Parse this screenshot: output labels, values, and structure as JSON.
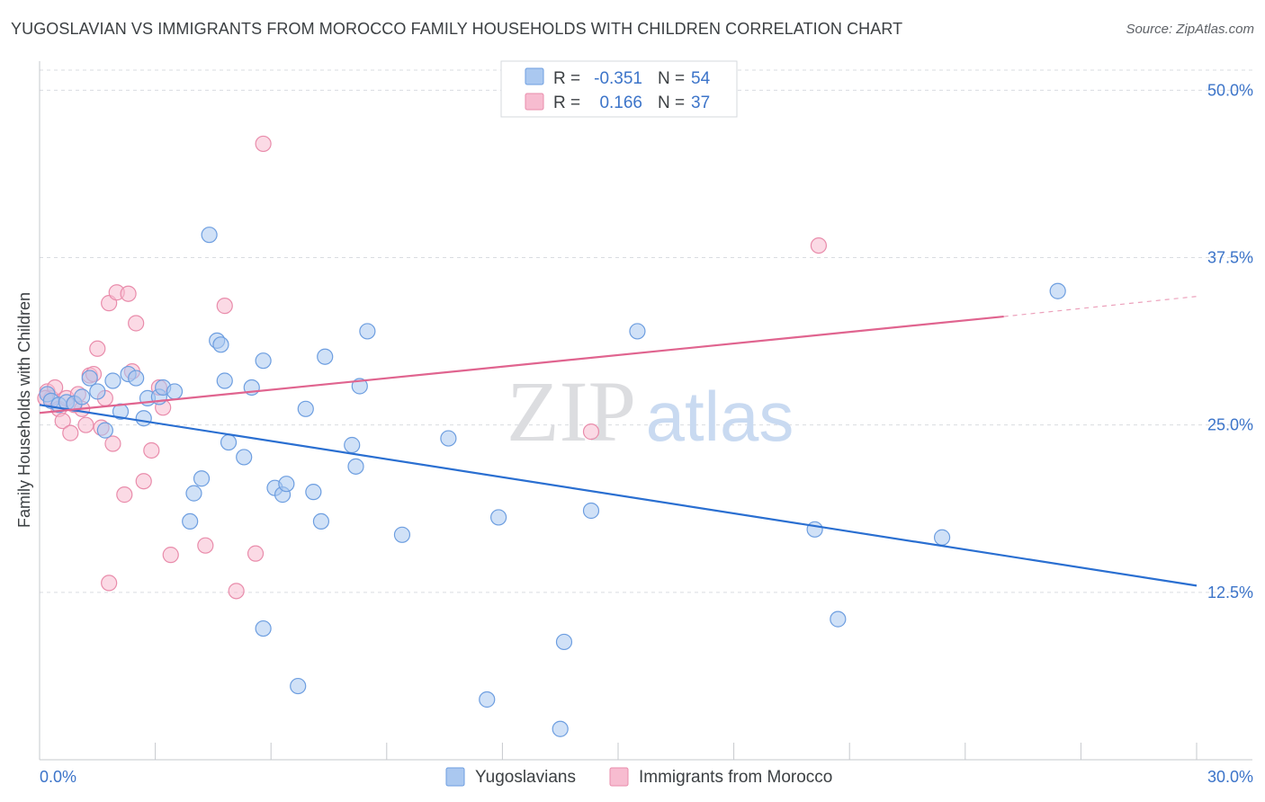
{
  "title": "YUGOSLAVIAN VS IMMIGRANTS FROM MOROCCO FAMILY HOUSEHOLDS WITH CHILDREN CORRELATION CHART",
  "source": "Source: ZipAtlas.com",
  "watermark": {
    "zip": "ZIP",
    "atlas": "atlas"
  },
  "colors": {
    "blue_fill": "#aac8f0",
    "blue_stroke": "#6d9ee0",
    "blue_line": "#2a6fd1",
    "pink_fill": "#f7bcd0",
    "pink_stroke": "#e98cab",
    "pink_line": "#e0648f",
    "axis_text": "#3c74c9",
    "grid": "#d9dce1"
  },
  "legend": {
    "rows": [
      {
        "r_label": "R =",
        "r_value": "-0.351",
        "n_label": "N =",
        "n_value": "54"
      },
      {
        "r_label": "R =",
        "r_value": "0.166",
        "n_label": "N =",
        "n_value": "37"
      }
    ]
  },
  "chart_data": {
    "type": "scatter",
    "title": "YUGOSLAVIAN VS IMMIGRANTS FROM MOROCCO FAMILY HOUSEHOLDS WITH CHILDREN CORRELATION CHART",
    "ylabel": "Family Households with Children",
    "xlabel": "",
    "xlim": [
      0,
      30
    ],
    "ylim": [
      0,
      51.5
    ],
    "x_ticks": [
      "0.0%",
      "30.0%"
    ],
    "y_ticks": [
      {
        "value": 12.5,
        "label": "12.5%"
      },
      {
        "value": 25.0,
        "label": "25.0%"
      },
      {
        "value": 37.5,
        "label": "37.5%"
      },
      {
        "value": 50.0,
        "label": "50.0%"
      }
    ],
    "grid": true,
    "legend_position": "top-center",
    "series": [
      {
        "name": "Yugoslavians",
        "trend": {
          "x": [
            0,
            30
          ],
          "y": [
            26.5,
            13.0
          ]
        },
        "points": [
          [
            0.2,
            27.3
          ],
          [
            0.3,
            26.8
          ],
          [
            0.5,
            26.5
          ],
          [
            0.7,
            26.7
          ],
          [
            0.9,
            26.6
          ],
          [
            1.1,
            27.1
          ],
          [
            1.3,
            28.5
          ],
          [
            1.5,
            27.5
          ],
          [
            1.7,
            24.6
          ],
          [
            1.9,
            28.3
          ],
          [
            2.1,
            26.0
          ],
          [
            2.3,
            28.8
          ],
          [
            2.5,
            28.5
          ],
          [
            2.7,
            25.5
          ],
          [
            2.8,
            27.0
          ],
          [
            3.1,
            27.1
          ],
          [
            3.2,
            27.8
          ],
          [
            3.5,
            27.5
          ],
          [
            3.9,
            17.8
          ],
          [
            4.0,
            19.9
          ],
          [
            4.2,
            21.0
          ],
          [
            4.4,
            39.2
          ],
          [
            4.6,
            31.3
          ],
          [
            4.7,
            31.0
          ],
          [
            4.8,
            28.3
          ],
          [
            4.9,
            23.7
          ],
          [
            5.3,
            22.6
          ],
          [
            5.5,
            27.8
          ],
          [
            5.8,
            29.8
          ],
          [
            5.8,
            9.8
          ],
          [
            6.1,
            20.3
          ],
          [
            6.3,
            19.8
          ],
          [
            6.4,
            20.6
          ],
          [
            6.7,
            5.5
          ],
          [
            6.9,
            26.2
          ],
          [
            7.1,
            20.0
          ],
          [
            7.3,
            17.8
          ],
          [
            7.4,
            30.1
          ],
          [
            8.1,
            23.5
          ],
          [
            8.2,
            21.9
          ],
          [
            8.3,
            27.9
          ],
          [
            8.5,
            32.0
          ],
          [
            9.4,
            16.8
          ],
          [
            10.6,
            24.0
          ],
          [
            11.6,
            4.5
          ],
          [
            11.9,
            18.1
          ],
          [
            13.5,
            2.3
          ],
          [
            13.6,
            8.8
          ],
          [
            14.3,
            18.6
          ],
          [
            15.5,
            32.0
          ],
          [
            20.1,
            17.2
          ],
          [
            20.7,
            10.5
          ],
          [
            23.4,
            16.6
          ],
          [
            26.4,
            35.0
          ]
        ]
      },
      {
        "name": "Immigrants from Morocco",
        "trend": {
          "x": [
            0,
            25.0
          ],
          "y": [
            25.9,
            33.1
          ]
        },
        "trend_dashed": {
          "x": [
            25.0,
            30
          ],
          "y": [
            33.1,
            34.6
          ]
        },
        "points": [
          [
            0.2,
            27.5
          ],
          [
            0.3,
            27.0
          ],
          [
            0.4,
            27.8
          ],
          [
            0.5,
            26.2
          ],
          [
            0.6,
            25.3
          ],
          [
            0.7,
            27.0
          ],
          [
            0.8,
            24.4
          ],
          [
            0.9,
            26.5
          ],
          [
            1.0,
            27.3
          ],
          [
            1.1,
            26.2
          ],
          [
            1.2,
            25.0
          ],
          [
            1.3,
            28.7
          ],
          [
            1.4,
            28.8
          ],
          [
            1.5,
            30.7
          ],
          [
            1.6,
            24.8
          ],
          [
            1.7,
            27.0
          ],
          [
            1.8,
            34.1
          ],
          [
            1.8,
            13.2
          ],
          [
            1.9,
            23.6
          ],
          [
            2.0,
            34.9
          ],
          [
            2.2,
            19.8
          ],
          [
            2.3,
            34.8
          ],
          [
            2.4,
            29.0
          ],
          [
            2.5,
            32.6
          ],
          [
            2.7,
            20.8
          ],
          [
            2.9,
            23.1
          ],
          [
            3.1,
            27.8
          ],
          [
            3.2,
            26.3
          ],
          [
            3.4,
            15.3
          ],
          [
            4.3,
            16.0
          ],
          [
            4.8,
            33.9
          ],
          [
            5.1,
            12.6
          ],
          [
            5.6,
            15.4
          ],
          [
            5.8,
            46.0
          ],
          [
            14.3,
            24.5
          ],
          [
            20.2,
            38.4
          ],
          [
            0.15,
            27.0
          ]
        ]
      }
    ]
  }
}
